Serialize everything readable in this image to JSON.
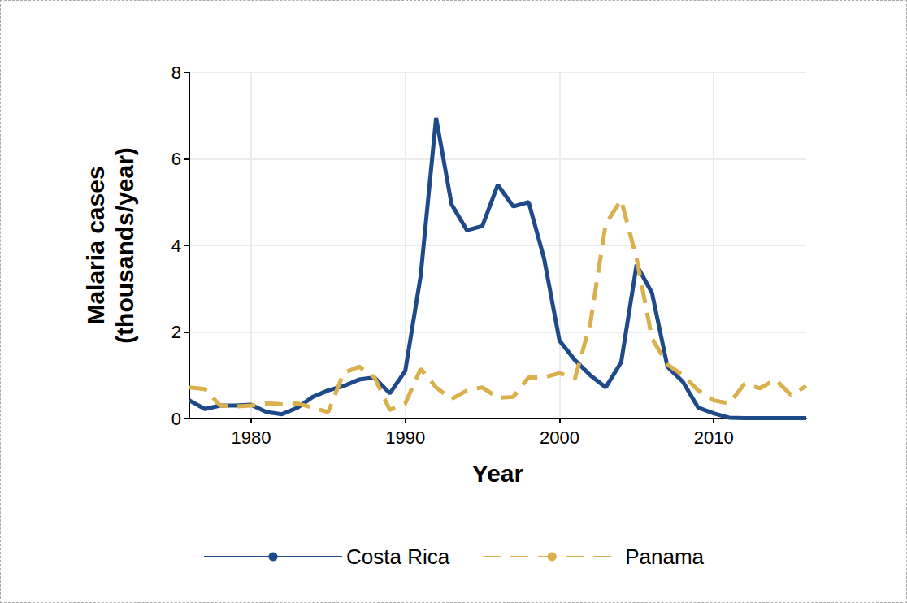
{
  "chart_data": {
    "type": "line",
    "x_label": "Year",
    "y_label": "Malaria cases\n(thousands/year)",
    "x": [
      1976,
      1977,
      1978,
      1979,
      1980,
      1981,
      1982,
      1983,
      1984,
      1985,
      1986,
      1987,
      1988,
      1989,
      1990,
      1991,
      1992,
      1993,
      1994,
      1995,
      1996,
      1997,
      1998,
      1999,
      2000,
      2001,
      2002,
      2003,
      2004,
      2005,
      2006,
      2007,
      2008,
      2009,
      2010,
      2011,
      2012,
      2013,
      2014,
      2015,
      2016
    ],
    "series": [
      {
        "name": "Costa Rica",
        "color": "#1f4a8a",
        "line_style": "solid",
        "values": [
          0.42,
          0.22,
          0.3,
          0.3,
          0.32,
          0.15,
          0.1,
          0.25,
          0.5,
          0.65,
          0.75,
          0.9,
          0.95,
          0.58,
          1.1,
          3.3,
          6.95,
          4.95,
          4.35,
          4.45,
          5.4,
          4.9,
          5.0,
          3.7,
          1.8,
          1.35,
          1.0,
          0.72,
          1.3,
          3.55,
          2.9,
          1.2,
          0.85,
          0.25,
          0.12,
          0.02,
          0.01,
          0.01,
          0.01,
          0.01,
          0.01
        ]
      },
      {
        "name": "Panama",
        "color": "#d9b04c",
        "line_style": "dashed",
        "values": [
          0.72,
          0.68,
          0.3,
          0.28,
          0.3,
          0.35,
          0.33,
          0.35,
          0.25,
          0.15,
          1.05,
          1.2,
          0.95,
          0.2,
          0.35,
          1.15,
          0.72,
          0.45,
          0.65,
          0.72,
          0.48,
          0.5,
          0.95,
          0.95,
          1.05,
          0.92,
          2.2,
          4.5,
          5.05,
          3.7,
          1.85,
          1.25,
          1.0,
          0.65,
          0.42,
          0.35,
          0.8,
          0.7,
          0.9,
          0.55,
          0.75
        ]
      }
    ],
    "xlim": [
      1976,
      2016
    ],
    "xticks": [
      1980,
      1990,
      2000,
      2010
    ],
    "ylim": [
      0,
      8
    ],
    "yticks": [
      0,
      2,
      4,
      6,
      8
    ],
    "grid": true,
    "legend": "bottom"
  }
}
